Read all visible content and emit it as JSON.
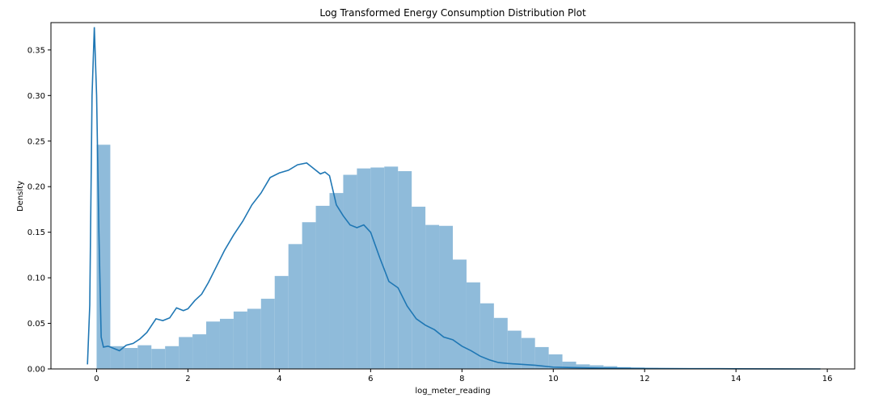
{
  "chart_data": {
    "type": "bar",
    "title": "Log Transformed Energy Consumption Distribution Plot",
    "xlabel": "log_meter_reading",
    "ylabel": "Density",
    "xlim": [
      -1.0,
      16.6
    ],
    "ylim": [
      0,
      0.38
    ],
    "xticks": [
      0,
      2,
      4,
      6,
      8,
      10,
      12,
      14,
      16
    ],
    "yticks": [
      0.0,
      0.05,
      0.1,
      0.15,
      0.2,
      0.25,
      0.3,
      0.35
    ],
    "ytick_labels": [
      "0.00",
      "0.05",
      "0.10",
      "0.15",
      "0.20",
      "0.25",
      "0.30",
      "0.35"
    ],
    "grid": false,
    "colors": {
      "hist": "#8fbbda",
      "kde": "#1f77b4"
    },
    "histogram": {
      "bin_width": 0.3,
      "bins_start": 0.0,
      "values": [
        0.246,
        0.025,
        0.023,
        0.026,
        0.022,
        0.025,
        0.035,
        0.038,
        0.052,
        0.055,
        0.063,
        0.066,
        0.077,
        0.102,
        0.137,
        0.161,
        0.179,
        0.193,
        0.213,
        0.22,
        0.221,
        0.222,
        0.217,
        0.178,
        0.158,
        0.157,
        0.12,
        0.095,
        0.072,
        0.056,
        0.042,
        0.034,
        0.024,
        0.016,
        0.008,
        0.005,
        0.004,
        0.003,
        0.002,
        0.0015,
        0.001,
        0.0008,
        0.0006,
        0.0005,
        0.0004,
        0.0003,
        0.0003,
        0.0002,
        0.0002,
        0.0002,
        0.0001,
        0.0001,
        0.0001
      ]
    },
    "kde": {
      "name": "",
      "x": [
        -0.2,
        -0.15,
        -0.1,
        -0.05,
        0.0,
        0.05,
        0.1,
        0.15,
        0.25,
        0.35,
        0.5,
        0.65,
        0.8,
        0.95,
        1.1,
        1.3,
        1.45,
        1.6,
        1.75,
        1.9,
        2.0,
        2.15,
        2.3,
        2.45,
        2.6,
        2.8,
        3.0,
        3.2,
        3.4,
        3.6,
        3.8,
        4.0,
        4.2,
        4.4,
        4.6,
        4.75,
        4.9,
        5.0,
        5.1,
        5.25,
        5.4,
        5.55,
        5.7,
        5.85,
        6.0,
        6.2,
        6.4,
        6.6,
        6.8,
        7.0,
        7.2,
        7.4,
        7.6,
        7.8,
        8.0,
        8.2,
        8.4,
        8.6,
        8.8,
        9.0,
        9.3,
        9.6,
        10.0,
        10.4,
        11.0,
        12.0,
        13.0,
        14.0,
        15.0,
        15.85
      ],
      "y": [
        0.005,
        0.07,
        0.3,
        0.375,
        0.3,
        0.15,
        0.035,
        0.024,
        0.025,
        0.023,
        0.02,
        0.026,
        0.028,
        0.033,
        0.04,
        0.055,
        0.053,
        0.056,
        0.067,
        0.064,
        0.066,
        0.075,
        0.082,
        0.095,
        0.11,
        0.13,
        0.147,
        0.162,
        0.18,
        0.193,
        0.21,
        0.215,
        0.218,
        0.224,
        0.226,
        0.22,
        0.214,
        0.216,
        0.212,
        0.18,
        0.168,
        0.158,
        0.155,
        0.158,
        0.15,
        0.122,
        0.096,
        0.089,
        0.069,
        0.055,
        0.048,
        0.043,
        0.035,
        0.032,
        0.025,
        0.02,
        0.014,
        0.01,
        0.007,
        0.006,
        0.005,
        0.004,
        0.002,
        0.0015,
        0.001,
        0.0005,
        0.0003,
        0.0002,
        0.0001,
        0.0
      ]
    }
  }
}
